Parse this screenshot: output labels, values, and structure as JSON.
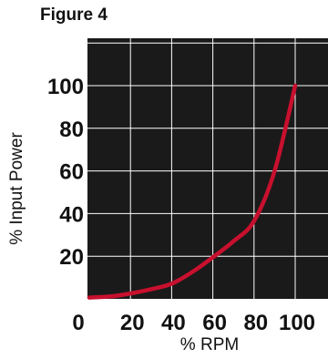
{
  "figure_label": "Figure 4",
  "chart_data": {
    "type": "line",
    "xlabel": "% RPM",
    "ylabel": "% Input Power",
    "xlim": [
      0,
      110
    ],
    "ylim": [
      0,
      110
    ],
    "x_ticks": [
      0,
      20,
      40,
      60,
      80,
      100
    ],
    "y_ticks": [
      20,
      40,
      60,
      80,
      100
    ],
    "grid": true,
    "background": "#1a1a1a",
    "grid_color": "#ffffff",
    "line_color": "#c8102e",
    "series": [
      {
        "x": [
          0,
          10,
          20,
          30,
          40,
          50,
          60,
          70,
          80,
          90,
          100
        ],
        "y": [
          0.6,
          1.1,
          2.5,
          4.5,
          7.1,
          12.6,
          19.5,
          27,
          36.5,
          60,
          100
        ]
      }
    ]
  }
}
